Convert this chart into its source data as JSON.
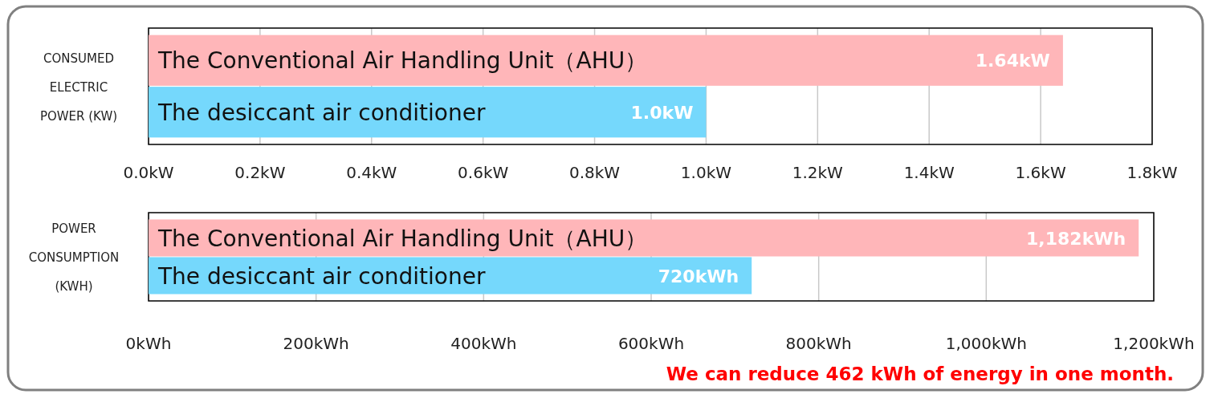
{
  "chart_data": [
    {
      "type": "bar",
      "orientation": "horizontal",
      "ylabel": "CONSUMED ELECTRIC POWER (KW)",
      "categories": [
        "The Conventional Air Handling Unit（AHU）",
        "The desiccant air conditioner"
      ],
      "values": [
        1.64,
        1.0
      ],
      "colors": [
        "#ffb6b9",
        "#75d8fc"
      ],
      "value_labels": [
        "1.64kW",
        "1.0kW"
      ],
      "xlim": [
        0,
        1.8
      ],
      "xticks": [
        {
          "value": 0,
          "label": "0.0kW"
        },
        {
          "value": 0.2,
          "label": "0.2kW"
        },
        {
          "value": 0.4,
          "label": "0.4kW"
        },
        {
          "value": 0.6,
          "label": "0.6kW"
        },
        {
          "value": 0.8,
          "label": "0.8kW"
        },
        {
          "value": 1.0,
          "label": "1.0kW"
        },
        {
          "value": 1.2,
          "label": "1.2kW"
        },
        {
          "value": 1.4,
          "label": "1.4kW"
        },
        {
          "value": 1.6,
          "label": "1.6kW"
        },
        {
          "value": 1.8,
          "label": "1.8kW"
        }
      ],
      "grid": "x"
    },
    {
      "type": "bar",
      "orientation": "horizontal",
      "ylabel": "POWER CONSUMPTION (KWH)",
      "categories": [
        "The Conventional Air Handling Unit（AHU）",
        "The desiccant air conditioner"
      ],
      "values": [
        1182,
        720
      ],
      "colors": [
        "#ffb6b9",
        "#75d8fc"
      ],
      "value_labels": [
        "1,182kWh",
        "720kWh"
      ],
      "xlim": [
        0,
        1200
      ],
      "xticks": [
        {
          "value": 0,
          "label": "0kWh"
        },
        {
          "value": 200,
          "label": "200kWh"
        },
        {
          "value": 400,
          "label": "400kWh"
        },
        {
          "value": 600,
          "label": "600kWh"
        },
        {
          "value": 800,
          "label": "800kWh"
        },
        {
          "value": 1000,
          "label": "1,000kWh"
        },
        {
          "value": 1200,
          "label": "1,200kWh"
        }
      ],
      "grid": "x",
      "annotations": [
        "We can reduce 462 kWh of energy in one month."
      ]
    }
  ]
}
